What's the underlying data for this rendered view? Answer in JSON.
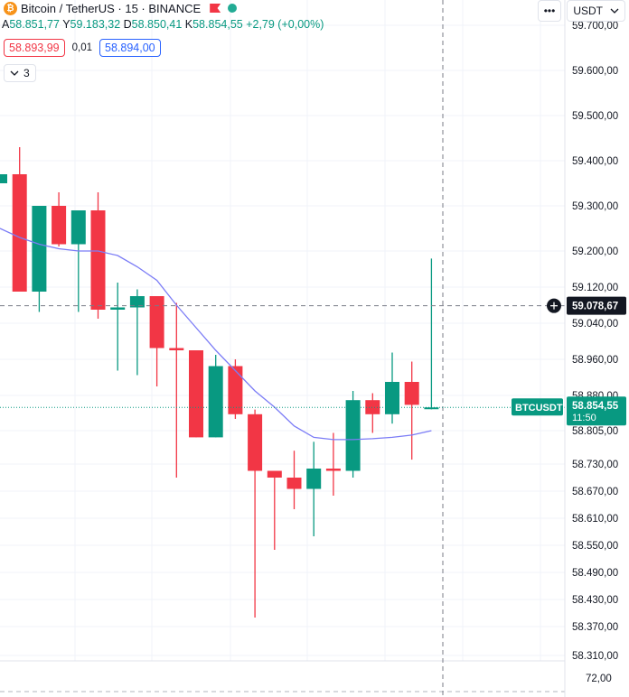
{
  "header": {
    "title": "Bitcoin / TetherUS · 15 · BINANCE",
    "btc_glyph": "₿",
    "ohlc": {
      "open_label": "A",
      "open": "58.851,77",
      "high_label": "Y",
      "high": "59.183,32",
      "low_label": "D",
      "low": "58.850,41",
      "close_label": "K",
      "close": "58.854,55",
      "change": "+2,79 (+0,00%)"
    },
    "sell_price": "58.893,99",
    "spread": "0,01",
    "buy_price": "58.894,00",
    "indicator_toggle": "3"
  },
  "toolbar": {
    "more_label": "•••",
    "currency": "USDT",
    "currency_chevron": "chevron-down-icon"
  },
  "colors": {
    "up": "#089981",
    "down": "#f23645",
    "ma": "#7b7cf6",
    "crosshair_label": "#131722",
    "last_price": "#089981"
  },
  "crosshair": {
    "price_label": "59.078,67",
    "plus_icon": "plus-circle-icon"
  },
  "last_price": {
    "symbol": "BTCUSDT",
    "price": "58.854,55",
    "countdown": "11:50"
  },
  "volume_axis": {
    "tick": "72,00"
  },
  "chart_data": {
    "type": "candlestick",
    "y_ticks": [
      "59.700,00",
      "59.600,00",
      "59.500,00",
      "59.400,00",
      "59.300,00",
      "59.200,00",
      "59.120,00",
      "59.040,00",
      "58.960,00",
      "58.880,00",
      "58.805,00",
      "58.730,00",
      "58.670,00",
      "58.610,00",
      "58.550,00",
      "58.490,00",
      "58.430,00",
      "58.370,00",
      "58.310,00"
    ],
    "y_tick_values": [
      59700,
      59600,
      59500,
      59400,
      59300,
      59200,
      59120,
      59040,
      58960,
      58880,
      58805,
      58730,
      58670,
      58610,
      58550,
      58490,
      58430,
      58370,
      58310
    ],
    "candles": [
      {
        "o": 59350,
        "h": 59370,
        "l": 59350,
        "c": 59370
      },
      {
        "o": 59370,
        "h": 59430,
        "l": 59110,
        "c": 59110
      },
      {
        "o": 59110,
        "h": 59300,
        "l": 59065,
        "c": 59300
      },
      {
        "o": 59300,
        "h": 59330,
        "l": 59210,
        "c": 59215
      },
      {
        "o": 59215,
        "h": 59290,
        "l": 59065,
        "c": 59290
      },
      {
        "o": 59290,
        "h": 59330,
        "l": 59050,
        "c": 59070
      },
      {
        "o": 59070,
        "h": 59130,
        "l": 58935,
        "c": 59075
      },
      {
        "o": 59075,
        "h": 59115,
        "l": 58925,
        "c": 59100
      },
      {
        "o": 59100,
        "h": 59100,
        "l": 58900,
        "c": 58985
      },
      {
        "o": 58985,
        "h": 59085,
        "l": 58700,
        "c": 58980
      },
      {
        "o": 58980,
        "h": 58980,
        "l": 58790,
        "c": 58790
      },
      {
        "o": 58790,
        "h": 58970,
        "l": 58790,
        "c": 58945
      },
      {
        "o": 58945,
        "h": 58960,
        "l": 58830,
        "c": 58840
      },
      {
        "o": 58840,
        "h": 58850,
        "l": 58390,
        "c": 58715
      },
      {
        "o": 58715,
        "h": 58715,
        "l": 58540,
        "c": 58700
      },
      {
        "o": 58700,
        "h": 58760,
        "l": 58630,
        "c": 58675
      },
      {
        "o": 58675,
        "h": 58780,
        "l": 58570,
        "c": 58720
      },
      {
        "o": 58720,
        "h": 58800,
        "l": 58660,
        "c": 58715
      },
      {
        "o": 58715,
        "h": 58890,
        "l": 58700,
        "c": 58870
      },
      {
        "o": 58870,
        "h": 58885,
        "l": 58800,
        "c": 58840
      },
      {
        "o": 58840,
        "h": 58975,
        "l": 58820,
        "c": 58910
      },
      {
        "o": 58910,
        "h": 58955,
        "l": 58740,
        "c": 58860
      },
      {
        "o": 58851.77,
        "h": 59183.32,
        "l": 58850.41,
        "c": 58854.55
      }
    ],
    "ma_line": [
      59250,
      59230,
      59215,
      59205,
      59200,
      59200,
      59190,
      59165,
      59135,
      59080,
      59030,
      58980,
      58935,
      58890,
      58855,
      58815,
      58790,
      58785,
      58785,
      58787,
      58790,
      58795,
      58805
    ],
    "crosshair_value": 59078.67,
    "last_value": 58854.55
  }
}
